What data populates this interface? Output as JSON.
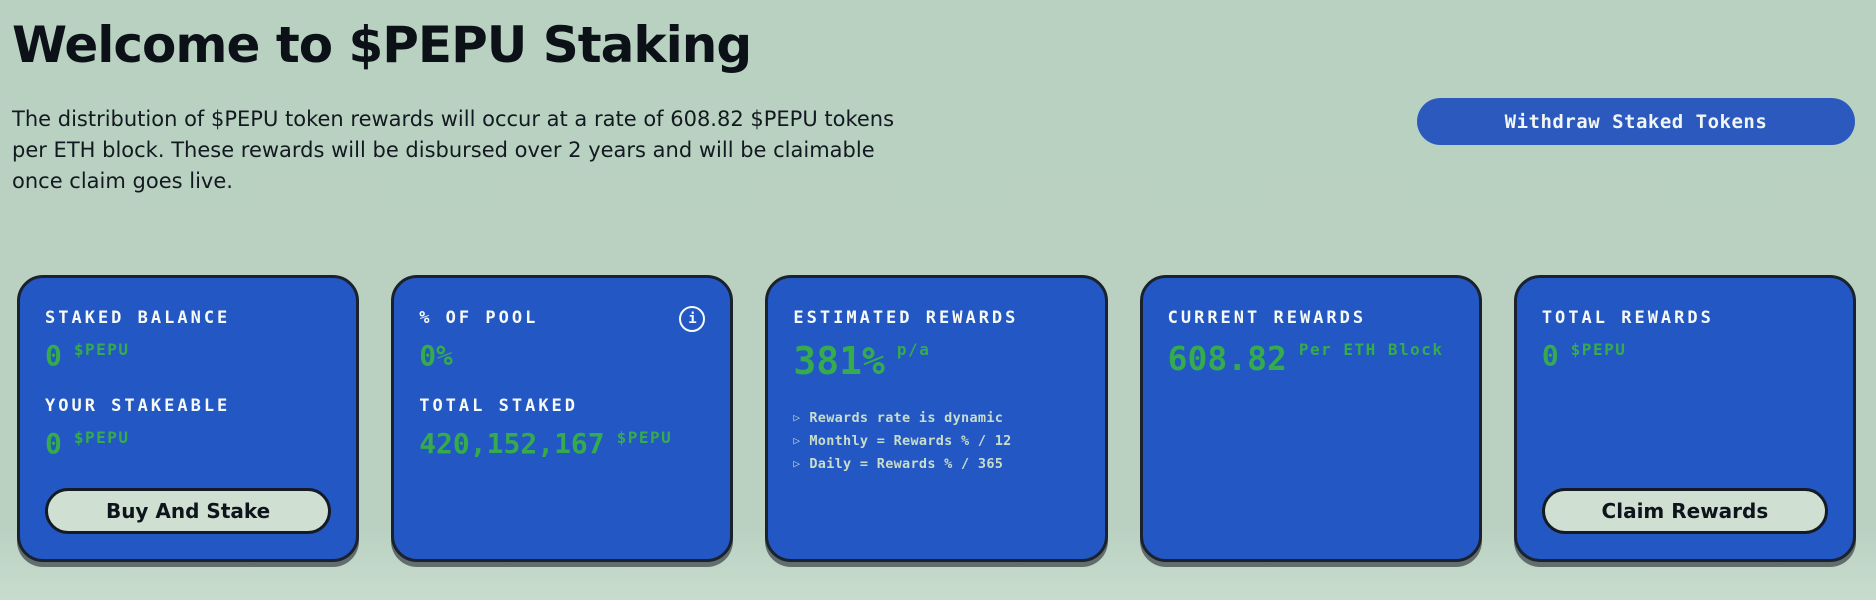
{
  "header": {
    "title": "Welcome to $PEPU Staking",
    "description": "The distribution of $PEPU token rewards will occur at a rate of 608.82 $PEPU tokens per ETH block. These rewards will be disbursed over 2 years and will be claimable once claim goes live.",
    "withdraw_button_label": "Withdraw Staked Tokens"
  },
  "colors": {
    "background": "#bad1c2",
    "card_blue": "#2357c4",
    "accent_green": "#35ab4d",
    "border_dark": "#1b222e",
    "pill_button_bg": "#cfe0d3"
  },
  "cards": {
    "staked_balance": {
      "label": "STAKED BALANCE",
      "value": "0",
      "unit": "$PEPU",
      "label2": "YOUR STAKEABLE",
      "value2": "0",
      "unit2": "$PEPU",
      "button_label": "Buy And Stake"
    },
    "pool": {
      "label": "% OF POOL",
      "value": "0%",
      "info_icon": "i",
      "label2": "TOTAL STAKED",
      "value2": "420,152,167",
      "unit2": "$PEPU"
    },
    "estimated_rewards": {
      "label": "ESTIMATED REWARDS",
      "value": "381%",
      "unit": "p/a",
      "bullet_icon": "▷",
      "notes": [
        "Rewards rate is dynamic",
        "Monthly = Rewards % / 12",
        "Daily = Rewards % / 365"
      ]
    },
    "current_rewards": {
      "label": "CURRENT REWARDS",
      "value": "608.82",
      "unit": "Per ETH Block"
    },
    "total_rewards": {
      "label": "TOTAL REWARDS",
      "value": "0",
      "unit": "$PEPU",
      "button_label": "Claim Rewards"
    }
  }
}
